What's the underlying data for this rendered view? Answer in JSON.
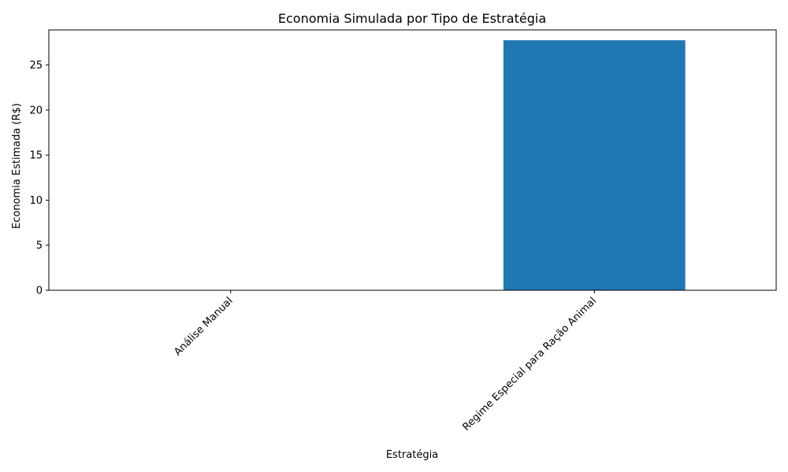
{
  "chart_data": {
    "type": "bar",
    "title": "Economia Simulada por Tipo de Estratégia",
    "xlabel": "Estratégia",
    "ylabel": "Economia Estimada (R$)",
    "categories": [
      "Análise Manual",
      "Regime Especial para Ração Animal"
    ],
    "values": [
      0,
      27.75
    ],
    "ylim": [
      0,
      28.9
    ],
    "yticks": [
      0,
      5,
      10,
      15,
      20,
      25
    ],
    "grid": false,
    "legend": "none",
    "bar_color": "#1f77b4"
  }
}
